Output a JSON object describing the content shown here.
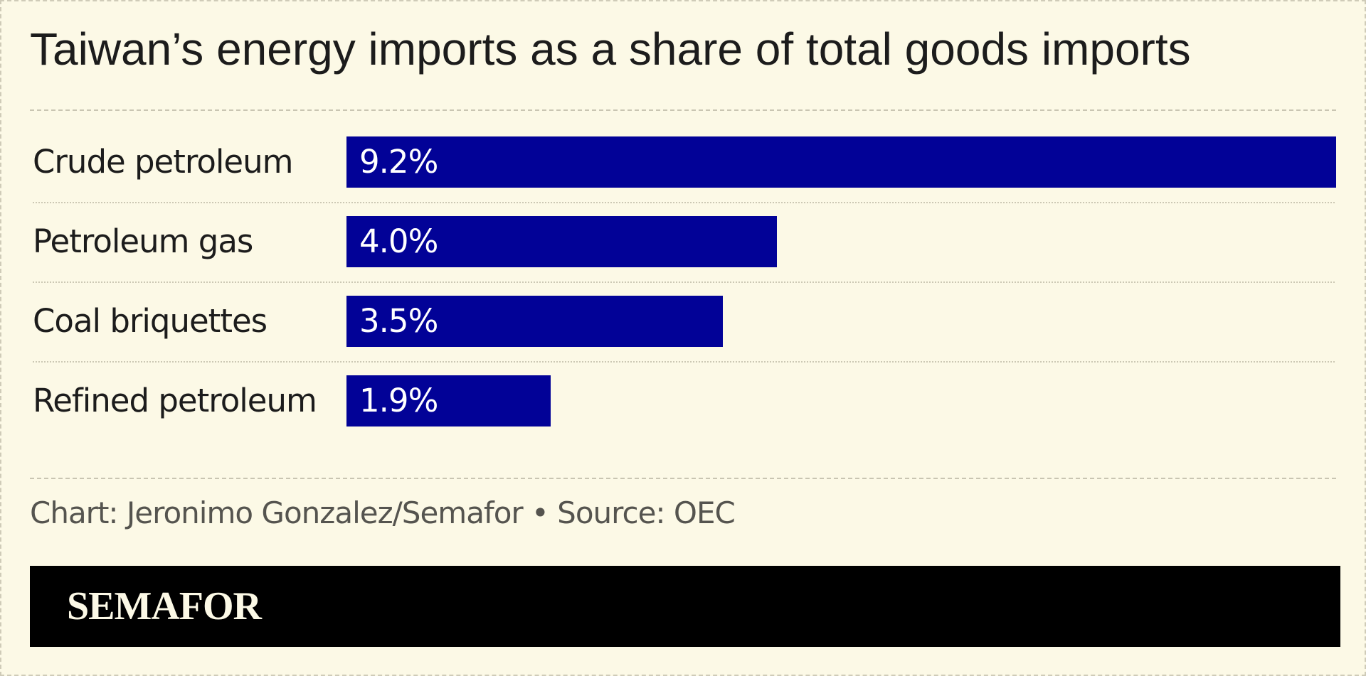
{
  "title": "Taiwan’s energy imports as a share of total goods imports",
  "credit": "Chart: Jeronimo Gonzalez/Semafor • Source: OEC",
  "brand": "SEMAFOR",
  "colors": {
    "bar": "#020297",
    "background": "#fcf9e6",
    "brandbar": "#000000"
  },
  "chart_data": {
    "type": "bar",
    "orientation": "horizontal",
    "title": "Taiwan’s energy imports as a share of total goods imports",
    "categories": [
      "Crude petroleum",
      "Petroleum gas",
      "Coal briquettes",
      "Refined petroleum"
    ],
    "values": [
      9.2,
      4.0,
      3.5,
      1.9
    ],
    "value_labels": [
      "9.2%",
      "4.0%",
      "3.5%",
      "1.9%"
    ],
    "unit": "%",
    "xlim": [
      0,
      9.2
    ],
    "grid": false,
    "legend": "none"
  }
}
